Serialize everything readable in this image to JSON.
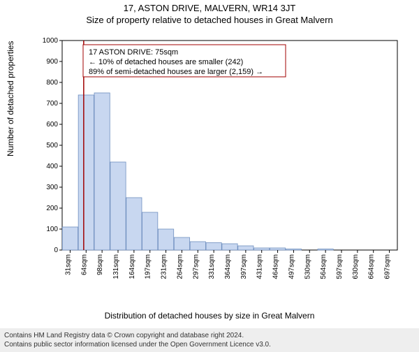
{
  "title": "17, ASTON DRIVE, MALVERN, WR14 3JT",
  "subtitle": "Size of property relative to detached houses in Great Malvern",
  "ylabel": "Number of detached properties",
  "xlabel": "Distribution of detached houses by size in Great Malvern",
  "footer_line1": "Contains HM Land Registry data © Crown copyright and database right 2024.",
  "footer_line2": "Contains public sector information licensed under the Open Government Licence v3.0.",
  "chart": {
    "type": "histogram",
    "background_color": "#ffffff",
    "plot_border_color": "#000000",
    "grid": false,
    "bar_fill": "#c8d7f0",
    "bar_stroke": "#6f8fbf",
    "marker_line_color": "#a00000",
    "marker_line_width": 1.5,
    "infobox_border": "#a00000",
    "infobox_fill": "#ffffff",
    "axis_font_size": 10,
    "label_font_size": 12,
    "title_font_size": 13,
    "ylim": [
      0,
      1000
    ],
    "ytick_step": 100,
    "xcategories": [
      "31sqm",
      "64sqm",
      "98sqm",
      "131sqm",
      "164sqm",
      "197sqm",
      "231sqm",
      "264sqm",
      "297sqm",
      "331sqm",
      "364sqm",
      "397sqm",
      "431sqm",
      "464sqm",
      "497sqm",
      "530sqm",
      "564sqm",
      "597sqm",
      "630sqm",
      "664sqm",
      "697sqm"
    ],
    "values": [
      110,
      740,
      750,
      420,
      250,
      180,
      100,
      60,
      40,
      35,
      30,
      20,
      10,
      10,
      5,
      0,
      5,
      0,
      0,
      0,
      0
    ],
    "marker_category_index": 1,
    "marker_fraction_within_bin": 0.35,
    "infobox": {
      "line1": "17 ASTON DRIVE: 75sqm",
      "line2": "← 10% of detached houses are smaller (242)",
      "line3": "89% of semi-detached houses are larger (2,159) →"
    }
  }
}
